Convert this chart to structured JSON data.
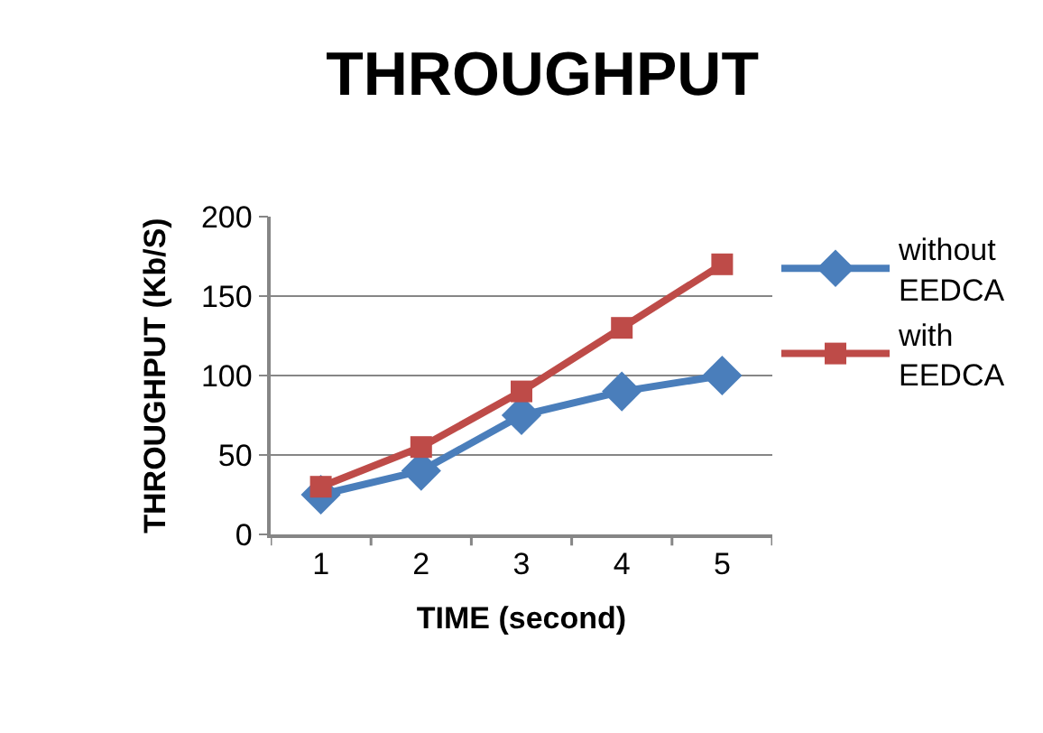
{
  "chart_data": {
    "type": "line",
    "title": "THROUGHPUT",
    "xlabel": "TIME (second)",
    "ylabel": "THROUGHPUT (Kb/S)",
    "categories": [
      "1",
      "2",
      "3",
      "4",
      "5"
    ],
    "series": [
      {
        "name": "without EEDCA",
        "color": "#4a7ebb",
        "marker": "diamond",
        "values": [
          25,
          40,
          75,
          90,
          100
        ]
      },
      {
        "name": "with EEDCA",
        "color": "#be4b48",
        "marker": "square",
        "values": [
          30,
          55,
          90,
          130,
          170
        ]
      }
    ],
    "ylim": [
      0,
      200
    ],
    "yticks": [
      0,
      50,
      100,
      150,
      200
    ],
    "grid": "y",
    "legend": "right",
    "line_style": "solid"
  }
}
